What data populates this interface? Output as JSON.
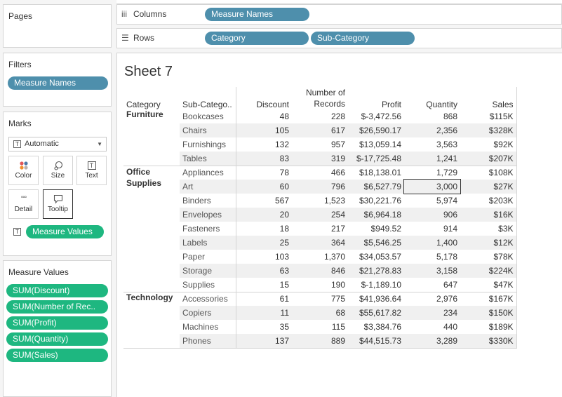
{
  "pages": {
    "title": "Pages"
  },
  "filters": {
    "title": "Filters",
    "pills": [
      "Measure Names"
    ]
  },
  "marks": {
    "title": "Marks",
    "type": "Automatic",
    "buttons": [
      "Color",
      "Size",
      "Text",
      "Detail",
      "Tooltip"
    ],
    "pill": "Measure Values"
  },
  "measure_values": {
    "title": "Measure Values",
    "pills": [
      "SUM(Discount)",
      "SUM(Number of Rec..",
      "SUM(Profit)",
      "SUM(Quantity)",
      "SUM(Sales)"
    ]
  },
  "columns_shelf": {
    "label": "Columns",
    "pills": [
      "Measure Names"
    ]
  },
  "rows_shelf": {
    "label": "Rows",
    "pills": [
      "Category",
      "Sub-Category"
    ]
  },
  "sheet": {
    "title": "Sheet 7"
  },
  "table": {
    "headers": {
      "category": "Category",
      "subcategory": "Sub-Catego..",
      "discount": "Discount",
      "records_line1": "Number of",
      "records_line2": "Records",
      "profit": "Profit",
      "quantity": "Quantity",
      "sales": "Sales"
    },
    "groups": [
      {
        "category": "Furniture",
        "rows": [
          {
            "sub": "Bookcases",
            "discount": "48",
            "records": "228",
            "profit": "$-3,472.56",
            "quantity": "868",
            "sales": "$115K"
          },
          {
            "sub": "Chairs",
            "discount": "105",
            "records": "617",
            "profit": "$26,590.17",
            "quantity": "2,356",
            "sales": "$328K"
          },
          {
            "sub": "Furnishings",
            "discount": "132",
            "records": "957",
            "profit": "$13,059.14",
            "quantity": "3,563",
            "sales": "$92K"
          },
          {
            "sub": "Tables",
            "discount": "83",
            "records": "319",
            "profit": "$-17,725.48",
            "quantity": "1,241",
            "sales": "$207K"
          }
        ]
      },
      {
        "category": "Office Supplies",
        "category_line1": "Office",
        "category_line2": "Supplies",
        "rows": [
          {
            "sub": "Appliances",
            "discount": "78",
            "records": "466",
            "profit": "$18,138.01",
            "quantity": "1,729",
            "sales": "$108K"
          },
          {
            "sub": "Art",
            "discount": "60",
            "records": "796",
            "profit": "$6,527.79",
            "quantity": "3,000",
            "sales": "$27K"
          },
          {
            "sub": "Binders",
            "discount": "567",
            "records": "1,523",
            "profit": "$30,221.76",
            "quantity": "5,974",
            "sales": "$203K"
          },
          {
            "sub": "Envelopes",
            "discount": "20",
            "records": "254",
            "profit": "$6,964.18",
            "quantity": "906",
            "sales": "$16K"
          },
          {
            "sub": "Fasteners",
            "discount": "18",
            "records": "217",
            "profit": "$949.52",
            "quantity": "914",
            "sales": "$3K"
          },
          {
            "sub": "Labels",
            "discount": "25",
            "records": "364",
            "profit": "$5,546.25",
            "quantity": "1,400",
            "sales": "$12K"
          },
          {
            "sub": "Paper",
            "discount": "103",
            "records": "1,370",
            "profit": "$34,053.57",
            "quantity": "5,178",
            "sales": "$78K"
          },
          {
            "sub": "Storage",
            "discount": "63",
            "records": "846",
            "profit": "$21,278.83",
            "quantity": "3,158",
            "sales": "$224K"
          },
          {
            "sub": "Supplies",
            "discount": "15",
            "records": "190",
            "profit": "$-1,189.10",
            "quantity": "647",
            "sales": "$47K"
          }
        ]
      },
      {
        "category": "Technology",
        "rows": [
          {
            "sub": "Accessories",
            "discount": "61",
            "records": "775",
            "profit": "$41,936.64",
            "quantity": "2,976",
            "sales": "$167K"
          },
          {
            "sub": "Copiers",
            "discount": "11",
            "records": "68",
            "profit": "$55,617.82",
            "quantity": "234",
            "sales": "$150K"
          },
          {
            "sub": "Machines",
            "discount": "35",
            "records": "115",
            "profit": "$3,384.76",
            "quantity": "440",
            "sales": "$189K"
          },
          {
            "sub": "Phones",
            "discount": "137",
            "records": "889",
            "profit": "$44,515.73",
            "quantity": "3,289",
            "sales": "$330K"
          }
        ]
      }
    ]
  },
  "colors": {
    "dimension_pill": "#4e8fac",
    "measure_pill": "#1eb780",
    "row_band": "#f0f0f0"
  }
}
